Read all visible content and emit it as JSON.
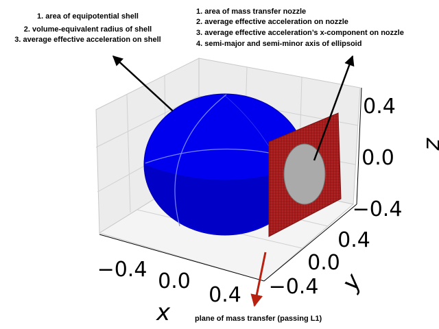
{
  "annotations": {
    "shell": {
      "lines": [
        "1. area of equipotential shell",
        "2. volume-equivalent radius of shell",
        "3. average effective acceleration on shell"
      ]
    },
    "nozzle": {
      "lines": [
        "1. area of mass transfer nozzle",
        "2. average effective acceleration on nozzle",
        "3. average effective acceleration’s x-component on nozzle",
        "4. semi-major and semi-minor axis of ellipsoid"
      ]
    },
    "plane": {
      "text": "plane of mass transfer (passing L1)"
    }
  },
  "axes": {
    "x": {
      "label": "x",
      "ticks": [
        "−0.4",
        "0.0",
        "0.4"
      ]
    },
    "y": {
      "label": "y",
      "ticks": [
        "0.4",
        "0.0",
        "−0.4"
      ]
    },
    "z": {
      "label": "z",
      "ticks": [
        "0.4",
        "0.0",
        "−0.4"
      ]
    }
  },
  "colors": {
    "shell": "#0000ee",
    "plane": "#b22222",
    "nozzle": "#aaaaaa",
    "arrow_black": "#000000",
    "arrow_red": "#b8210f"
  }
}
